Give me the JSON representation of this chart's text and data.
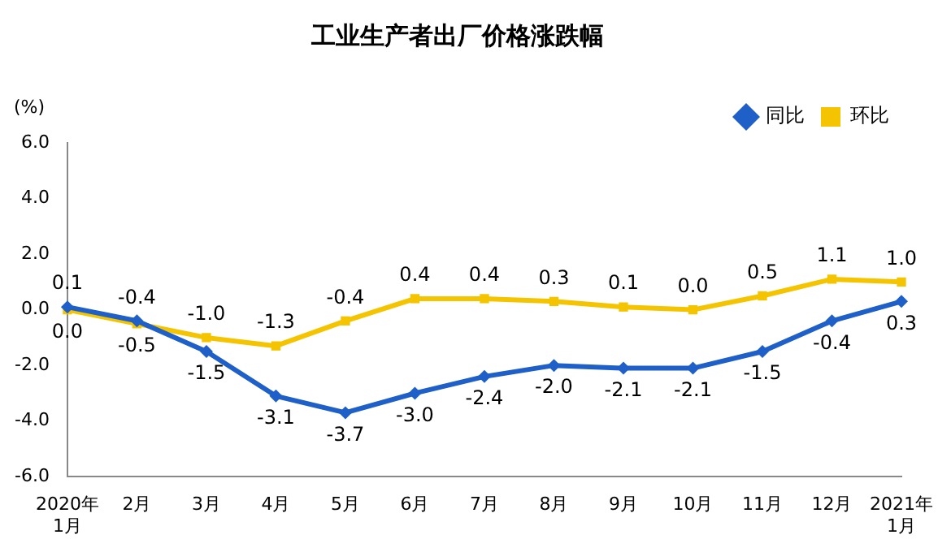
{
  "chart_data": {
    "type": "line",
    "title": "工业生产者出厂价格涨跌幅",
    "ylabel": "(%)",
    "categories": [
      "2020年\n1月",
      "2月",
      "3月",
      "4月",
      "5月",
      "6月",
      "7月",
      "8月",
      "9月",
      "10月",
      "11月",
      "12月",
      "2021年\n1月"
    ],
    "series": [
      {
        "name": "同比",
        "color": "#1f5fc8",
        "marker": "diamond",
        "values": [
          0.1,
          -0.4,
          -1.5,
          -3.1,
          -3.7,
          -3.0,
          -2.4,
          -2.0,
          -2.1,
          -2.1,
          -1.5,
          -0.4,
          0.3
        ],
        "value_labels": [
          "0.1",
          "-0.4",
          "-1.5",
          "-3.1",
          "-3.7",
          "-3.0",
          "-2.4",
          "-2.0",
          "-2.1",
          "-2.1",
          "-1.5",
          "-0.4",
          "0.3"
        ]
      },
      {
        "name": "环比",
        "color": "#f5c400",
        "marker": "square",
        "values": [
          0.0,
          -0.5,
          -1.0,
          -1.3,
          -0.4,
          0.4,
          0.4,
          0.3,
          0.1,
          0.0,
          0.5,
          1.1,
          1.0
        ],
        "value_labels": [
          "0.0",
          "-0.5",
          "-1.0",
          "-1.3",
          "-0.4",
          "0.4",
          "0.4",
          "0.3",
          "0.1",
          "0.0",
          "0.5",
          "1.1",
          "1.0"
        ]
      }
    ],
    "ylim": [
      -6,
      6
    ],
    "yticks": [
      {
        "value": -6,
        "label": "-6.0"
      },
      {
        "value": -4,
        "label": "-4.0"
      },
      {
        "value": -2,
        "label": "-2.0"
      },
      {
        "value": 0,
        "label": "0.0"
      },
      {
        "value": 2,
        "label": "2.0"
      },
      {
        "value": 4,
        "label": "4.0"
      },
      {
        "value": 6,
        "label": "6.0"
      }
    ],
    "grid": false,
    "legend": "top right",
    "line_style": "solid"
  }
}
